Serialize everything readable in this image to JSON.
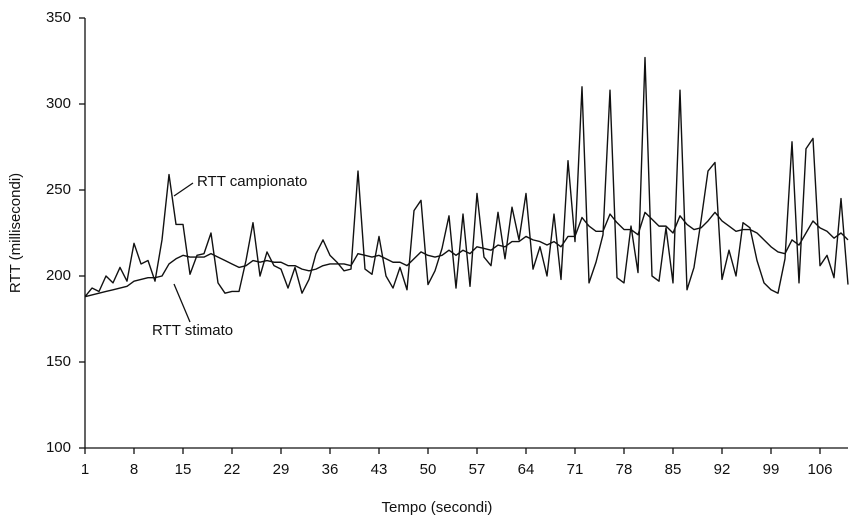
{
  "chart_data": {
    "type": "line",
    "x_label": "Tempo (secondi)",
    "y_label": "RTT (millisecondi)",
    "x": [
      1,
      2,
      3,
      4,
      5,
      6,
      7,
      8,
      9,
      10,
      11,
      12,
      13,
      14,
      15,
      16,
      17,
      18,
      19,
      20,
      21,
      22,
      23,
      24,
      25,
      26,
      27,
      28,
      29,
      30,
      31,
      32,
      33,
      34,
      35,
      36,
      37,
      38,
      39,
      40,
      41,
      42,
      43,
      44,
      45,
      46,
      47,
      48,
      49,
      50,
      51,
      52,
      53,
      54,
      55,
      56,
      57,
      58,
      59,
      60,
      61,
      62,
      63,
      64,
      65,
      66,
      67,
      68,
      69,
      70,
      71,
      72,
      73,
      74,
      75,
      76,
      77,
      78,
      79,
      80,
      81,
      82,
      83,
      84,
      85,
      86,
      87,
      88,
      89,
      90,
      91,
      92,
      93,
      94,
      95,
      96,
      97,
      98,
      99,
      100,
      101,
      102,
      103,
      104,
      105,
      106,
      107,
      108,
      109,
      110
    ],
    "series": [
      {
        "name": "RTT campionato",
        "color": "#111111",
        "values": [
          188,
          193,
          191,
          200,
          196,
          205,
          197,
          219,
          207,
          209,
          197,
          221,
          259,
          230,
          230,
          201,
          212,
          213,
          225,
          196,
          190,
          191,
          191,
          209,
          231,
          200,
          214,
          206,
          204,
          193,
          205,
          190,
          198,
          213,
          221,
          212,
          208,
          203,
          204,
          261,
          204,
          201,
          223,
          200,
          193,
          205,
          192,
          238,
          244,
          195,
          203,
          216,
          235,
          193,
          236,
          194,
          248,
          211,
          206,
          237,
          210,
          240,
          221,
          248,
          204,
          217,
          200,
          236,
          198,
          267,
          220,
          310,
          196,
          208,
          224,
          308,
          199,
          196,
          229,
          202,
          327,
          200,
          197,
          228,
          196,
          308,
          192,
          205,
          232,
          261,
          266,
          198,
          215,
          200,
          231,
          228,
          209,
          196,
          192,
          190,
          210,
          278,
          196,
          274,
          280,
          206,
          212,
          199,
          245,
          195
        ]
      },
      {
        "name": "RTT stimato",
        "color": "#111111",
        "values": [
          188,
          189,
          190,
          191,
          192,
          193,
          194,
          197,
          198,
          199,
          199,
          200,
          207,
          210,
          212,
          211,
          211,
          211,
          213,
          211,
          209,
          207,
          205,
          206,
          209,
          208,
          209,
          208,
          208,
          206,
          206,
          204,
          203,
          204,
          206,
          207,
          207,
          207,
          206,
          213,
          212,
          211,
          212,
          210,
          208,
          208,
          206,
          210,
          214,
          212,
          211,
          212,
          215,
          212,
          215,
          213,
          217,
          216,
          215,
          218,
          217,
          220,
          220,
          223,
          221,
          220,
          218,
          220,
          217,
          223,
          223,
          234,
          229,
          226,
          226,
          236,
          231,
          227,
          227,
          224,
          237,
          233,
          229,
          229,
          225,
          235,
          230,
          227,
          228,
          232,
          237,
          232,
          229,
          226,
          227,
          227,
          225,
          221,
          217,
          214,
          213,
          221,
          218,
          225,
          232,
          228,
          226,
          222,
          225,
          221
        ]
      }
    ],
    "xlim": [
      1,
      110
    ],
    "ylim": [
      100,
      350
    ],
    "xticks": [
      1,
      8,
      15,
      22,
      29,
      36,
      43,
      50,
      57,
      64,
      71,
      78,
      85,
      92,
      99,
      106
    ],
    "yticks": [
      100,
      150,
      200,
      250,
      300,
      350
    ],
    "grid": false
  }
}
